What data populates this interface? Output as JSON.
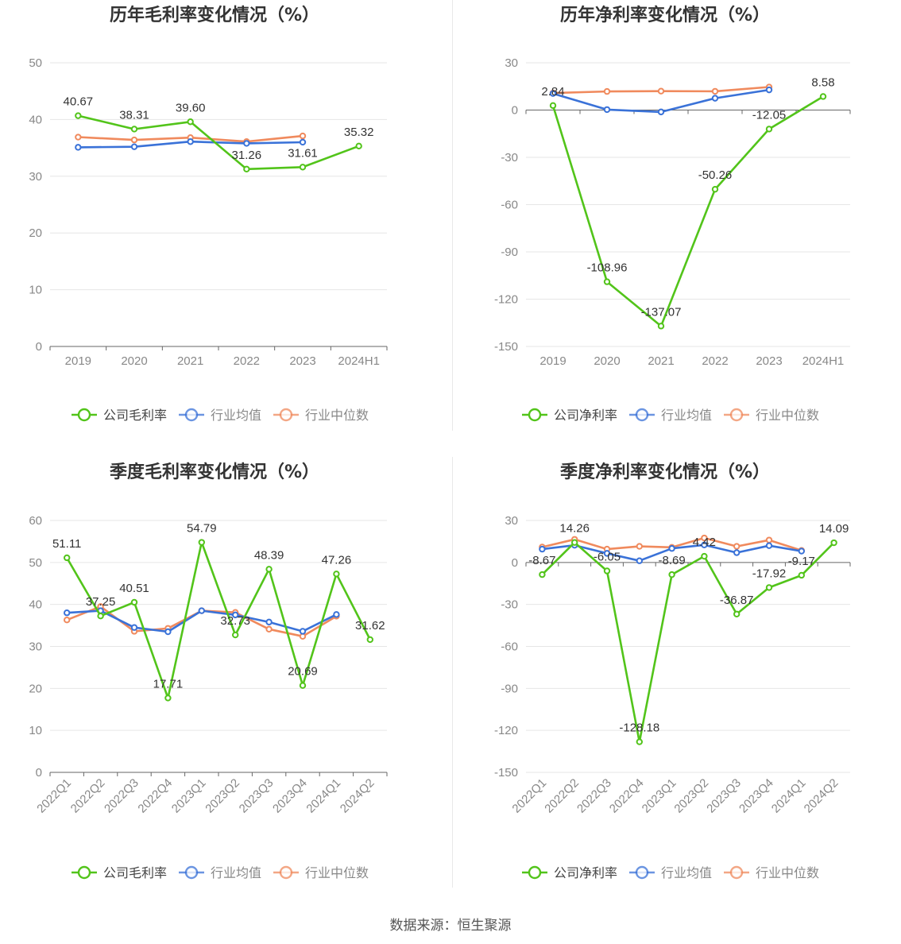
{
  "footer": {
    "source": "数据来源：恒生聚源"
  },
  "colors": {
    "company": "#52c41a",
    "avg": "#3a72d8",
    "median": "#f08a5d"
  },
  "chart_data": [
    {
      "type": "line",
      "title": "历年毛利率变化情况（%）",
      "categories": [
        "2019",
        "2020",
        "2021",
        "2022",
        "2023",
        "2024H1"
      ],
      "ylim": [
        0,
        50
      ],
      "yticks": [
        0,
        10,
        20,
        30,
        40,
        50
      ],
      "xlabel_rotate": false,
      "series": [
        {
          "name": "公司毛利率",
          "key": "company",
          "values": [
            40.67,
            38.31,
            39.6,
            31.26,
            31.61,
            35.32
          ],
          "labels": true
        },
        {
          "name": "行业均值",
          "key": "avg",
          "values": [
            35.1,
            35.2,
            36.1,
            35.8,
            36.0,
            null
          ]
        },
        {
          "name": "行业中位数",
          "key": "median",
          "values": [
            36.9,
            36.4,
            36.8,
            36.1,
            37.1,
            null
          ]
        }
      ]
    },
    {
      "type": "line",
      "title": "历年净利率变化情况（%）",
      "categories": [
        "2019",
        "2020",
        "2021",
        "2022",
        "2023",
        "2024H1"
      ],
      "ylim": [
        -150,
        30
      ],
      "yticks": [
        30,
        0,
        -30,
        -60,
        -90,
        -120,
        -150
      ],
      "xlabel_rotate": false,
      "series": [
        {
          "name": "公司净利率",
          "key": "company",
          "values": [
            2.84,
            -108.96,
            -137.07,
            -50.26,
            -12.05,
            8.58
          ],
          "labels": true
        },
        {
          "name": "行业均值",
          "key": "avg",
          "values": [
            10.5,
            0.3,
            -1.2,
            7.5,
            12.8,
            null
          ]
        },
        {
          "name": "行业中位数",
          "key": "median",
          "values": [
            10.8,
            11.8,
            12.0,
            11.9,
            14.6,
            null
          ]
        }
      ]
    },
    {
      "type": "line",
      "title": "季度毛利率变化情况（%）",
      "categories": [
        "2022Q1",
        "2022Q2",
        "2022Q3",
        "2022Q4",
        "2023Q1",
        "2023Q2",
        "2023Q3",
        "2023Q4",
        "2024Q1",
        "2024Q2"
      ],
      "ylim": [
        0,
        60
      ],
      "yticks": [
        0,
        10,
        20,
        30,
        40,
        50,
        60
      ],
      "xlabel_rotate": true,
      "series": [
        {
          "name": "公司毛利率",
          "key": "company",
          "values": [
            51.11,
            37.25,
            40.51,
            17.71,
            54.79,
            32.73,
            48.39,
            20.69,
            47.26,
            31.62
          ],
          "labels": true
        },
        {
          "name": "行业均值",
          "key": "avg",
          "values": [
            38.0,
            38.5,
            34.5,
            33.5,
            38.5,
            37.5,
            35.8,
            33.6,
            37.6,
            null
          ]
        },
        {
          "name": "行业中位数",
          "key": "median",
          "values": [
            36.3,
            39.5,
            33.6,
            34.3,
            38.5,
            38.1,
            34.1,
            32.4,
            37.2,
            null
          ]
        }
      ]
    },
    {
      "type": "line",
      "title": "季度净利率变化情况（%）",
      "categories": [
        "2022Q1",
        "2022Q2",
        "2022Q3",
        "2022Q4",
        "2023Q1",
        "2023Q2",
        "2023Q3",
        "2023Q4",
        "2024Q1",
        "2024Q2"
      ],
      "ylim": [
        -150,
        30
      ],
      "yticks": [
        30,
        0,
        -30,
        -60,
        -90,
        -120,
        -150
      ],
      "xlabel_rotate": true,
      "series": [
        {
          "name": "公司净利率",
          "key": "company",
          "values": [
            -8.67,
            14.26,
            -6.05,
            -128.18,
            -8.69,
            4.42,
            -36.87,
            -17.92,
            -9.17,
            14.09
          ],
          "labels": true
        },
        {
          "name": "行业均值",
          "key": "avg",
          "values": [
            9.5,
            12.3,
            6.5,
            1.2,
            10.0,
            12.5,
            7.0,
            12.0,
            8.1,
            null
          ]
        },
        {
          "name": "行业中位数",
          "key": "median",
          "values": [
            11.0,
            16.5,
            9.5,
            11.5,
            10.8,
            17.5,
            11.5,
            16.0,
            8.6,
            null
          ]
        }
      ]
    }
  ]
}
